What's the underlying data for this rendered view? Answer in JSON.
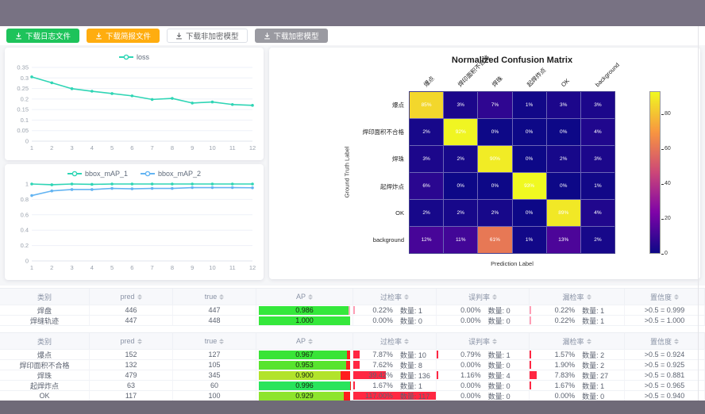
{
  "toolbar": {
    "buttons": [
      {
        "label": "下载日志文件",
        "style": "green"
      },
      {
        "label": "下载简报文件",
        "style": "orange"
      },
      {
        "label": "下载非加密模型",
        "style": "white"
      },
      {
        "label": "下载加密模型",
        "style": "gray"
      }
    ]
  },
  "colors": {
    "teal": "#2fd5b5",
    "blue": "#63b4f2",
    "grid": "#eef1f8",
    "axis_text": "#9aa2ad",
    "band": "#787283",
    "rate_bar_t1": "#ff9eb5",
    "rate_bar_t2": "#ff2742"
  },
  "chart_data": [
    {
      "type": "line",
      "title": "",
      "x": [
        1,
        2,
        3,
        4,
        5,
        6,
        7,
        8,
        9,
        10,
        11,
        12
      ],
      "series": [
        {
          "name": "loss",
          "color": "#2fd5b5",
          "values": [
            0.305,
            0.277,
            0.249,
            0.237,
            0.226,
            0.215,
            0.198,
            0.203,
            0.181,
            0.186,
            0.174,
            0.17
          ]
        }
      ],
      "ylim": [
        0,
        0.35
      ],
      "yticks": [
        0,
        0.05,
        0.1,
        0.15,
        0.2,
        0.25,
        0.3,
        0.35
      ],
      "legend_position": "top",
      "grid": true
    },
    {
      "type": "line",
      "title": "",
      "x": [
        1,
        2,
        3,
        4,
        5,
        6,
        7,
        8,
        9,
        10,
        11,
        12
      ],
      "series": [
        {
          "name": "bbox_mAP_1",
          "color": "#2fd5b5",
          "values": [
            1.0,
            0.99,
            1.0,
            0.995,
            1.0,
            1.0,
            1.0,
            1.0,
            1.0,
            1.0,
            1.0,
            1.0
          ]
        },
        {
          "name": "bbox_mAP_2",
          "color": "#63b4f2",
          "values": [
            0.85,
            0.91,
            0.928,
            0.928,
            0.943,
            0.938,
            0.943,
            0.943,
            0.953,
            0.953,
            0.953,
            0.951
          ]
        }
      ],
      "ylim": [
        0,
        1
      ],
      "yticks": [
        0,
        0.2,
        0.4,
        0.6,
        0.8,
        1
      ],
      "legend_position": "top",
      "grid": true
    },
    {
      "type": "heatmap",
      "title": "Normalized Confusion Matrix",
      "xlabel": "Prediction Label",
      "ylabel": "Ground Truth Label",
      "labels": [
        "爆点",
        "焊印面积不合格",
        "焊珠",
        "起焊炸点",
        "OK",
        "background"
      ],
      "values": [
        [
          85,
          3,
          7,
          1,
          3,
          3
        ],
        [
          2,
          92,
          0,
          0,
          0,
          4
        ],
        [
          3,
          2,
          90,
          0,
          2,
          3
        ],
        [
          6,
          0,
          0,
          93,
          0,
          1
        ],
        [
          2,
          2,
          2,
          0,
          89,
          4
        ],
        [
          12,
          11,
          61,
          1,
          13,
          2
        ]
      ],
      "vmin": 0,
      "vmax": 93,
      "colorbar_ticks": [
        0,
        20,
        40,
        60,
        80
      ],
      "colormap": "plasma"
    }
  ],
  "tables": [
    {
      "headers": [
        {
          "label": "类别",
          "sortable": false
        },
        {
          "label": "pred",
          "sortable": true
        },
        {
          "label": "true",
          "sortable": true
        },
        {
          "label": "AP",
          "sortable": true
        },
        {
          "label": "过检率",
          "sortable": true
        },
        {
          "label": "误判率",
          "sortable": true
        },
        {
          "label": "漏检率",
          "sortable": true
        },
        {
          "label": "置信度",
          "sortable": true
        }
      ],
      "count_label": "数量",
      "rate_bar_color": "#ff9eb5",
      "ap_rest_color": "#ffb1c1",
      "rows": [
        {
          "name": "焊盘",
          "pred": "446",
          "true": "447",
          "ap": "0.986",
          "ap_color": "#35e83b",
          "over": {
            "pct": "0.22",
            "count": "1"
          },
          "mis": {
            "pct": "0.00",
            "count": "0"
          },
          "miss": {
            "pct": "0.22",
            "count": "1"
          },
          "conf": ">0.5 = 0.999"
        },
        {
          "name": "焊缝轨迹",
          "pred": "447",
          "true": "448",
          "ap": "1.000",
          "ap_color": "#35e83b",
          "over": {
            "pct": "0.00",
            "count": "0"
          },
          "mis": {
            "pct": "0.00",
            "count": "0"
          },
          "miss": {
            "pct": "0.22",
            "count": "1"
          },
          "conf": ">0.5 = 1.000"
        }
      ]
    },
    {
      "headers": [
        {
          "label": "类别",
          "sortable": false
        },
        {
          "label": "pred",
          "sortable": true
        },
        {
          "label": "true",
          "sortable": true
        },
        {
          "label": "AP",
          "sortable": true
        },
        {
          "label": "过检率",
          "sortable": true
        },
        {
          "label": "误判率",
          "sortable": true
        },
        {
          "label": "漏检率",
          "sortable": true
        },
        {
          "label": "置信度",
          "sortable": true
        }
      ],
      "count_label": "数量",
      "rate_bar_color": "#ff2742",
      "ap_rest_color": "#ff1e1e",
      "rows": [
        {
          "name": "爆点",
          "pred": "152",
          "true": "127",
          "ap": "0.967",
          "ap_color": "#39e437",
          "over": {
            "pct": "7.87",
            "count": "10"
          },
          "mis": {
            "pct": "0.79",
            "count": "1"
          },
          "miss": {
            "pct": "1.57",
            "count": "2"
          },
          "conf": ">0.5 = 0.924"
        },
        {
          "name": "焊印面积不合格",
          "pred": "132",
          "true": "105",
          "ap": "0.953",
          "ap_color": "#58e42e",
          "over": {
            "pct": "7.62",
            "count": "8"
          },
          "mis": {
            "pct": "0.00",
            "count": "0"
          },
          "miss": {
            "pct": "1.90",
            "count": "2"
          },
          "conf": ">0.5 = 0.925"
        },
        {
          "name": "焊珠",
          "pred": "479",
          "true": "345",
          "ap": "0.900",
          "ap_color": "#b2e32b",
          "over": {
            "pct": "39.42",
            "count": "136"
          },
          "mis": {
            "pct": "1.16",
            "count": "4"
          },
          "miss": {
            "pct": "7.83",
            "count": "27"
          },
          "conf": ">0.5 = 0.881"
        },
        {
          "name": "起焊炸点",
          "pred": "63",
          "true": "60",
          "ap": "0.996",
          "ap_color": "#29e45c",
          "over": {
            "pct": "1.67",
            "count": "1"
          },
          "mis": {
            "pct": "0.00",
            "count": "0"
          },
          "miss": {
            "pct": "1.67",
            "count": "1"
          },
          "conf": ">0.5 = 0.965"
        },
        {
          "name": "OK",
          "pred": "117",
          "true": "100",
          "ap": "0.929",
          "ap_color": "#8ee42e",
          "over": {
            "pct": "117.00",
            "count": "117"
          },
          "mis": {
            "pct": "0.00",
            "count": "0"
          },
          "miss": {
            "pct": "0.00",
            "count": "0"
          },
          "conf": ">0.5 = 0.940"
        }
      ]
    }
  ]
}
